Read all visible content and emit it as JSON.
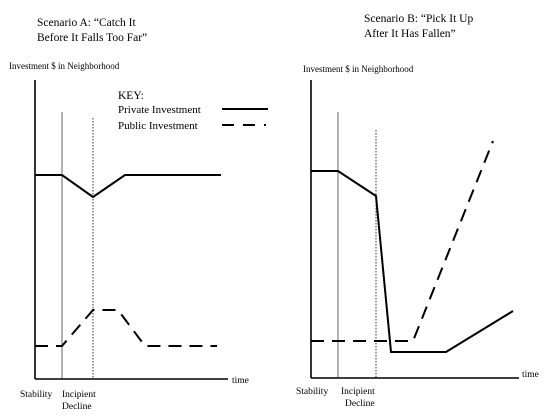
{
  "scenario_a": {
    "title_line1": "Scenario A: “Catch It",
    "title_line2": "Before  It Falls Too Far”",
    "ylabel": "Investment $ in Neighborhood",
    "xlabel": "time",
    "phase_stability": "Stability",
    "phase_incipient_1": "Incipient",
    "phase_incipient_2": "Decline"
  },
  "scenario_b": {
    "title_line1": "Scenario B: “Pick It Up",
    "title_line2": "After It Has Fallen”",
    "ylabel": "Investment $ in Neighborhood",
    "xlabel": "time",
    "phase_stability": "Stability",
    "phase_incipient_1": "Incipient",
    "phase_incipient_2": "Decline"
  },
  "key": {
    "title": "KEY:",
    "private_label": "Private Investment",
    "public_label": "Public Investment"
  }
}
